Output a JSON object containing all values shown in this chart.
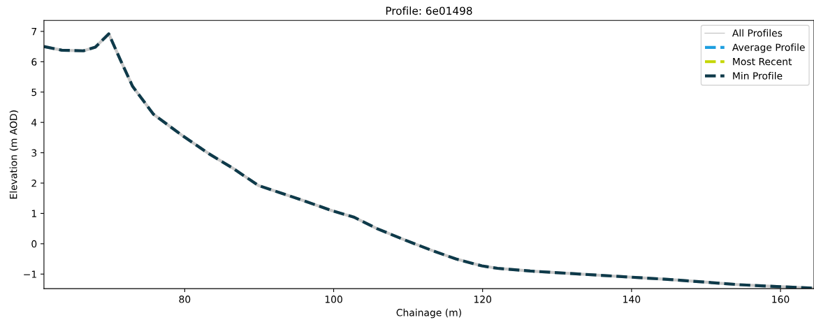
{
  "chart_data": {
    "type": "line",
    "title": "Profile: 6e01498",
    "xlabel": "Chainage (m)",
    "ylabel": "Elevation (m AOD)",
    "x": [
      61.1,
      63.5,
      66.4,
      68.0,
      69.8,
      71.4,
      73.0,
      75.8,
      79.6,
      83.3,
      86.4,
      89.9,
      92.7,
      95.5,
      99.9,
      102.7,
      105.8,
      109.6,
      113.3,
      116.4,
      119.9,
      122.0,
      126.4,
      135.8,
      145.2,
      154.5,
      159.5,
      164.2
    ],
    "series": [
      {
        "name": "All Profiles",
        "color": "#c8c8c8",
        "line_style": "solid",
        "values": [
          6.5,
          6.38,
          6.36,
          6.48,
          6.92,
          6.04,
          5.19,
          4.27,
          3.58,
          2.96,
          2.5,
          1.92,
          1.69,
          1.46,
          1.08,
          0.88,
          0.5,
          0.12,
          -0.23,
          -0.5,
          -0.73,
          -0.81,
          -0.9,
          -1.04,
          -1.18,
          -1.35,
          -1.41,
          -1.46
        ]
      },
      {
        "name": "Average Profile",
        "color": "#1f9fe0",
        "line_style": "dashed",
        "values": [
          null,
          null,
          null,
          null,
          null,
          null,
          null,
          null,
          null,
          null,
          null,
          null,
          null,
          null,
          null,
          null,
          null,
          null,
          null,
          null,
          null,
          null,
          null,
          null,
          null,
          null,
          null,
          null
        ]
      },
      {
        "name": "Most Recent",
        "color": "#c4d600",
        "line_style": "dashed",
        "values": [
          null,
          null,
          null,
          null,
          null,
          null,
          null,
          null,
          null,
          null,
          null,
          null,
          null,
          null,
          null,
          null,
          null,
          null,
          null,
          null,
          null,
          null,
          null,
          null,
          null,
          null,
          null,
          null
        ]
      },
      {
        "name": "Min Profile",
        "color": "#0e3a4a",
        "line_style": "dashed",
        "values": [
          6.5,
          6.38,
          6.36,
          6.48,
          6.92,
          6.04,
          5.19,
          4.27,
          3.58,
          2.96,
          2.5,
          1.92,
          1.69,
          1.46,
          1.08,
          0.88,
          0.5,
          0.12,
          -0.23,
          -0.5,
          -0.73,
          -0.81,
          -0.9,
          -1.04,
          -1.18,
          -1.35,
          -1.41,
          -1.46
        ]
      }
    ],
    "xlim": [
      61.1,
      164.5
    ],
    "ylim": [
      -1.48,
      7.36
    ],
    "xticks": [
      80,
      100,
      120,
      140,
      160
    ],
    "yticks": [
      -1,
      0,
      1,
      2,
      3,
      4,
      5,
      6,
      7
    ],
    "grid": false,
    "legend": "top right"
  }
}
